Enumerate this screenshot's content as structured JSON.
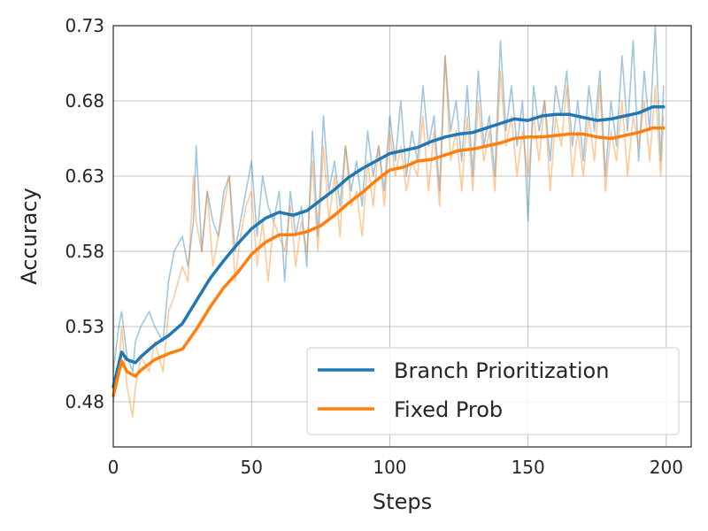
{
  "chart_data": {
    "type": "line",
    "xlabel": "Steps",
    "ylabel": "Accuracy",
    "xlim": [
      0,
      209
    ],
    "ylim": [
      0.45,
      0.73
    ],
    "x_ticks": [
      0,
      50,
      100,
      150,
      200
    ],
    "y_ticks": [
      0.48,
      0.53,
      0.58,
      0.63,
      0.68,
      0.73
    ],
    "y_tick_labels": [
      "0.48",
      "0.53",
      "0.58",
      "0.63",
      "0.68",
      "0.73"
    ],
    "grid": true,
    "legend_position": "bottom-right",
    "series": [
      {
        "name": "Branch Prioritization",
        "color": "#1f77b4",
        "smoothed": {
          "x": [
            0,
            3,
            5,
            8,
            10,
            15,
            20,
            25,
            30,
            35,
            40,
            45,
            50,
            55,
            60,
            65,
            70,
            75,
            80,
            85,
            90,
            95,
            100,
            105,
            110,
            115,
            120,
            125,
            130,
            135,
            140,
            145,
            150,
            155,
            160,
            165,
            170,
            175,
            180,
            185,
            190,
            195,
            199
          ],
          "y": [
            0.49,
            0.513,
            0.508,
            0.506,
            0.51,
            0.518,
            0.524,
            0.532,
            0.547,
            0.562,
            0.574,
            0.585,
            0.595,
            0.602,
            0.606,
            0.604,
            0.607,
            0.614,
            0.621,
            0.629,
            0.635,
            0.64,
            0.645,
            0.647,
            0.649,
            0.653,
            0.656,
            0.658,
            0.659,
            0.662,
            0.665,
            0.668,
            0.667,
            0.67,
            0.671,
            0.671,
            0.669,
            0.667,
            0.668,
            0.67,
            0.672,
            0.676,
            0.676
          ]
        },
        "raw": {
          "x": [
            0,
            2,
            3,
            5,
            7,
            8,
            10,
            13,
            15,
            18,
            20,
            22,
            25,
            27,
            29,
            30,
            32,
            34,
            36,
            38,
            40,
            42,
            44,
            46,
            48,
            50,
            52,
            54,
            56,
            58,
            60,
            62,
            64,
            66,
            68,
            70,
            72,
            74,
            76,
            78,
            80,
            82,
            84,
            86,
            88,
            90,
            92,
            94,
            96,
            98,
            100,
            102,
            104,
            106,
            108,
            110,
            112,
            114,
            116,
            118,
            120,
            122,
            124,
            126,
            128,
            130,
            132,
            134,
            136,
            138,
            140,
            142,
            144,
            146,
            148,
            150,
            152,
            154,
            156,
            158,
            160,
            162,
            164,
            166,
            168,
            170,
            172,
            174,
            176,
            178,
            180,
            182,
            184,
            186,
            188,
            190,
            192,
            194,
            196,
            198,
            199
          ],
          "y": [
            0.5,
            0.53,
            0.54,
            0.51,
            0.5,
            0.52,
            0.53,
            0.54,
            0.53,
            0.52,
            0.56,
            0.58,
            0.59,
            0.57,
            0.6,
            0.65,
            0.58,
            0.62,
            0.6,
            0.59,
            0.62,
            0.63,
            0.58,
            0.6,
            0.62,
            0.64,
            0.59,
            0.63,
            0.61,
            0.6,
            0.62,
            0.56,
            0.62,
            0.59,
            0.61,
            0.57,
            0.66,
            0.59,
            0.67,
            0.62,
            0.64,
            0.61,
            0.65,
            0.62,
            0.64,
            0.61,
            0.66,
            0.63,
            0.65,
            0.62,
            0.67,
            0.64,
            0.68,
            0.63,
            0.66,
            0.64,
            0.69,
            0.65,
            0.67,
            0.62,
            0.71,
            0.66,
            0.68,
            0.64,
            0.69,
            0.63,
            0.7,
            0.65,
            0.67,
            0.63,
            0.72,
            0.66,
            0.69,
            0.65,
            0.68,
            0.6,
            0.69,
            0.66,
            0.68,
            0.64,
            0.69,
            0.67,
            0.7,
            0.65,
            0.68,
            0.64,
            0.69,
            0.66,
            0.7,
            0.63,
            0.68,
            0.65,
            0.71,
            0.66,
            0.72,
            0.64,
            0.7,
            0.66,
            0.73,
            0.64,
            0.69
          ]
        }
      },
      {
        "name": "Fixed Prob",
        "color": "#ff7f0e",
        "smoothed": {
          "x": [
            0,
            3,
            5,
            8,
            10,
            15,
            20,
            25,
            30,
            35,
            40,
            45,
            50,
            55,
            60,
            65,
            70,
            75,
            80,
            85,
            90,
            95,
            100,
            105,
            110,
            115,
            120,
            125,
            130,
            135,
            140,
            145,
            150,
            155,
            160,
            165,
            170,
            175,
            180,
            185,
            190,
            195,
            199
          ],
          "y": [
            0.484,
            0.507,
            0.5,
            0.497,
            0.501,
            0.508,
            0.512,
            0.515,
            0.528,
            0.543,
            0.556,
            0.566,
            0.578,
            0.586,
            0.591,
            0.591,
            0.593,
            0.597,
            0.604,
            0.612,
            0.619,
            0.627,
            0.634,
            0.636,
            0.64,
            0.641,
            0.644,
            0.647,
            0.648,
            0.65,
            0.652,
            0.655,
            0.656,
            0.656,
            0.657,
            0.658,
            0.658,
            0.656,
            0.655,
            0.657,
            0.659,
            0.662,
            0.662
          ]
        },
        "raw": {
          "x": [
            0,
            2,
            3,
            5,
            7,
            8,
            10,
            13,
            15,
            18,
            20,
            22,
            25,
            27,
            29,
            30,
            32,
            34,
            36,
            38,
            40,
            42,
            44,
            46,
            48,
            50,
            52,
            54,
            56,
            58,
            60,
            62,
            64,
            66,
            68,
            70,
            72,
            74,
            76,
            78,
            80,
            82,
            84,
            86,
            88,
            90,
            92,
            94,
            96,
            98,
            100,
            102,
            104,
            106,
            108,
            110,
            112,
            114,
            116,
            118,
            120,
            122,
            124,
            126,
            128,
            130,
            132,
            134,
            136,
            138,
            140,
            142,
            144,
            146,
            148,
            150,
            152,
            154,
            156,
            158,
            160,
            162,
            164,
            166,
            168,
            170,
            172,
            174,
            176,
            178,
            180,
            182,
            184,
            186,
            188,
            190,
            192,
            194,
            196,
            198,
            199
          ],
          "y": [
            0.48,
            0.5,
            0.53,
            0.49,
            0.47,
            0.49,
            0.51,
            0.5,
            0.52,
            0.5,
            0.54,
            0.55,
            0.57,
            0.56,
            0.63,
            0.6,
            0.58,
            0.62,
            0.57,
            0.59,
            0.61,
            0.63,
            0.56,
            0.59,
            0.61,
            0.62,
            0.57,
            0.6,
            0.56,
            0.6,
            0.59,
            0.58,
            0.61,
            0.57,
            0.6,
            0.58,
            0.64,
            0.58,
            0.65,
            0.6,
            0.63,
            0.59,
            0.65,
            0.61,
            0.62,
            0.59,
            0.64,
            0.61,
            0.65,
            0.61,
            0.66,
            0.63,
            0.65,
            0.62,
            0.64,
            0.63,
            0.67,
            0.62,
            0.66,
            0.61,
            0.71,
            0.64,
            0.66,
            0.62,
            0.67,
            0.62,
            0.68,
            0.64,
            0.66,
            0.62,
            0.7,
            0.65,
            0.67,
            0.63,
            0.66,
            0.63,
            0.67,
            0.64,
            0.68,
            0.62,
            0.67,
            0.65,
            0.69,
            0.63,
            0.66,
            0.63,
            0.67,
            0.64,
            0.69,
            0.62,
            0.66,
            0.64,
            0.68,
            0.63,
            0.67,
            0.65,
            0.68,
            0.64,
            0.69,
            0.63,
            0.67
          ]
        }
      }
    ]
  }
}
